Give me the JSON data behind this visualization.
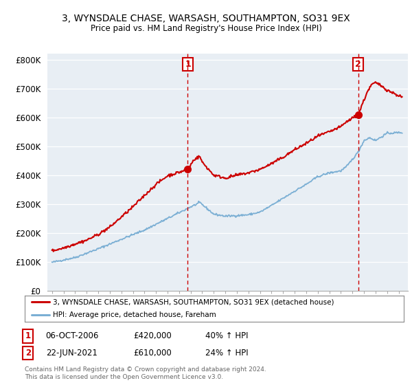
{
  "title": "3, WYNSDALE CHASE, WARSASH, SOUTHAMPTON, SO31 9EX",
  "subtitle": "Price paid vs. HM Land Registry's House Price Index (HPI)",
  "ylabel_ticks": [
    "£0",
    "£100K",
    "£200K",
    "£300K",
    "£400K",
    "£500K",
    "£600K",
    "£700K",
    "£800K"
  ],
  "ytick_values": [
    0,
    100000,
    200000,
    300000,
    400000,
    500000,
    600000,
    700000,
    800000
  ],
  "ylim": [
    0,
    820000
  ],
  "red_color": "#cc0000",
  "blue_color": "#7bafd4",
  "chart_bg": "#e8eef4",
  "marker1_x": 2006.75,
  "marker2_x": 2021.5,
  "marker1_value": 420000,
  "marker2_value": 610000,
  "legend_label1": "3, WYNSDALE CHASE, WARSASH, SOUTHAMPTON, SO31 9EX (detached house)",
  "legend_label2": "HPI: Average price, detached house, Fareham",
  "annotation1_date": "06-OCT-2006",
  "annotation1_price": "£420,000",
  "annotation1_hpi": "40% ↑ HPI",
  "annotation2_date": "22-JUN-2021",
  "annotation2_price": "£610,000",
  "annotation2_hpi": "24% ↑ HPI",
  "footer": "Contains HM Land Registry data © Crown copyright and database right 2024.\nThis data is licensed under the Open Government Licence v3.0.",
  "background_color": "#ffffff",
  "grid_color": "#ffffff"
}
